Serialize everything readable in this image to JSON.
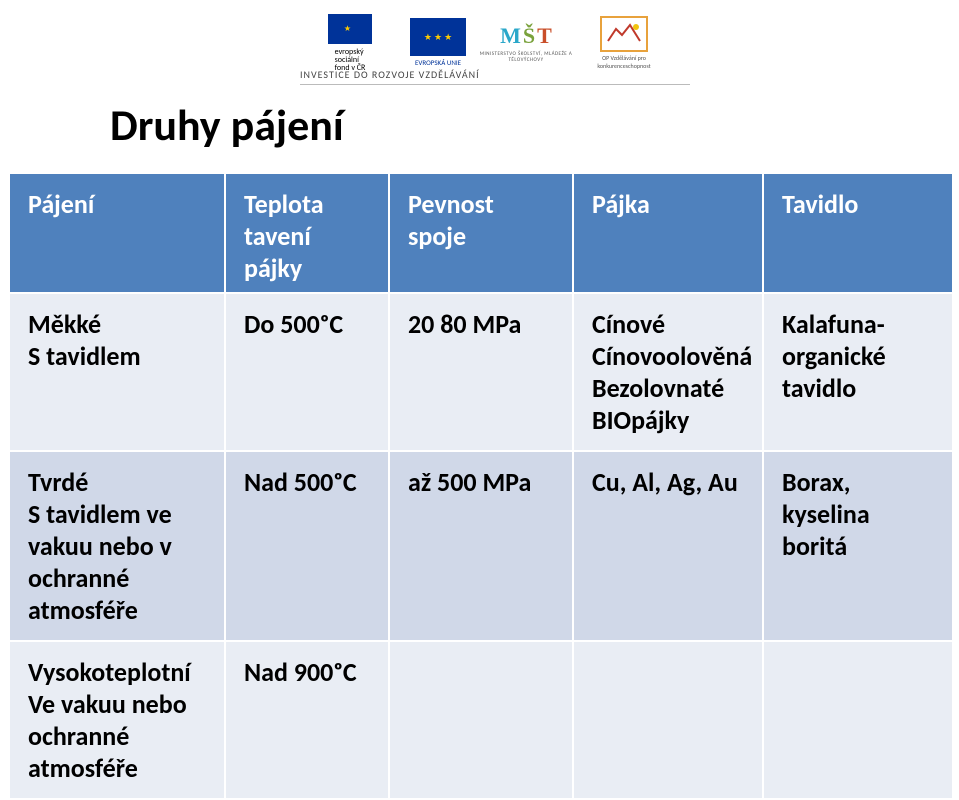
{
  "logos": {
    "esf_lines": [
      "evropský",
      "sociální",
      "fond v ČR"
    ],
    "eu_label": "EVROPSKÁ UNIE",
    "msmt_m": "M",
    "msmt_s": "Š",
    "msmt_t": "T",
    "msmt_sub": "MINISTERSTVO ŠKOLSTVÍ, MLÁDEŽE A TĚLOVÝCHOVY",
    "op_sub": "OP Vzdělávání pro konkurenceschopnost",
    "invest_line": "INVESTICE DO ROZVOJE VZDĚLÁVÁNÍ"
  },
  "title": "Druhy pájení",
  "header": {
    "c1": "Pájení",
    "c2": "Teplota tavení pájky",
    "c3": "Pevnost spoje",
    "c4": "Pájka",
    "c5": "Tavidlo"
  },
  "rows": [
    {
      "c1": "Měkké\nS tavidlem",
      "c2": "Do 500ᵒC",
      "c3": "20 80 MPa",
      "c4": "Cínové\nCínovoolověná\nBezolovnaté\nBIOpájky",
      "c5": "Kalafuna-\norganické tavidlo"
    },
    {
      "c1": "Tvrdé\nS tavidlem ve vakuu nebo v ochranné atmosféře",
      "c2": "Nad 500ᵒC",
      "c3": "až 500 MPa",
      "c4": "Cu, Al, Ag, Au",
      "c5": "Borax, kyselina boritá"
    },
    {
      "c1": "Vysokoteplotní\nVe vakuu nebo ochranné atmosféře",
      "c2": "Nad 900ᵒC",
      "c3": "",
      "c4": "",
      "c5": ""
    }
  ],
  "colors": {
    "header_bg": "#4f81bd",
    "row_bg": "#e9edf4",
    "row_alt_bg": "#d0d8e8",
    "eu_blue": "#003399",
    "eu_gold": "#ffcc00",
    "op_border": "#e8a23c"
  }
}
